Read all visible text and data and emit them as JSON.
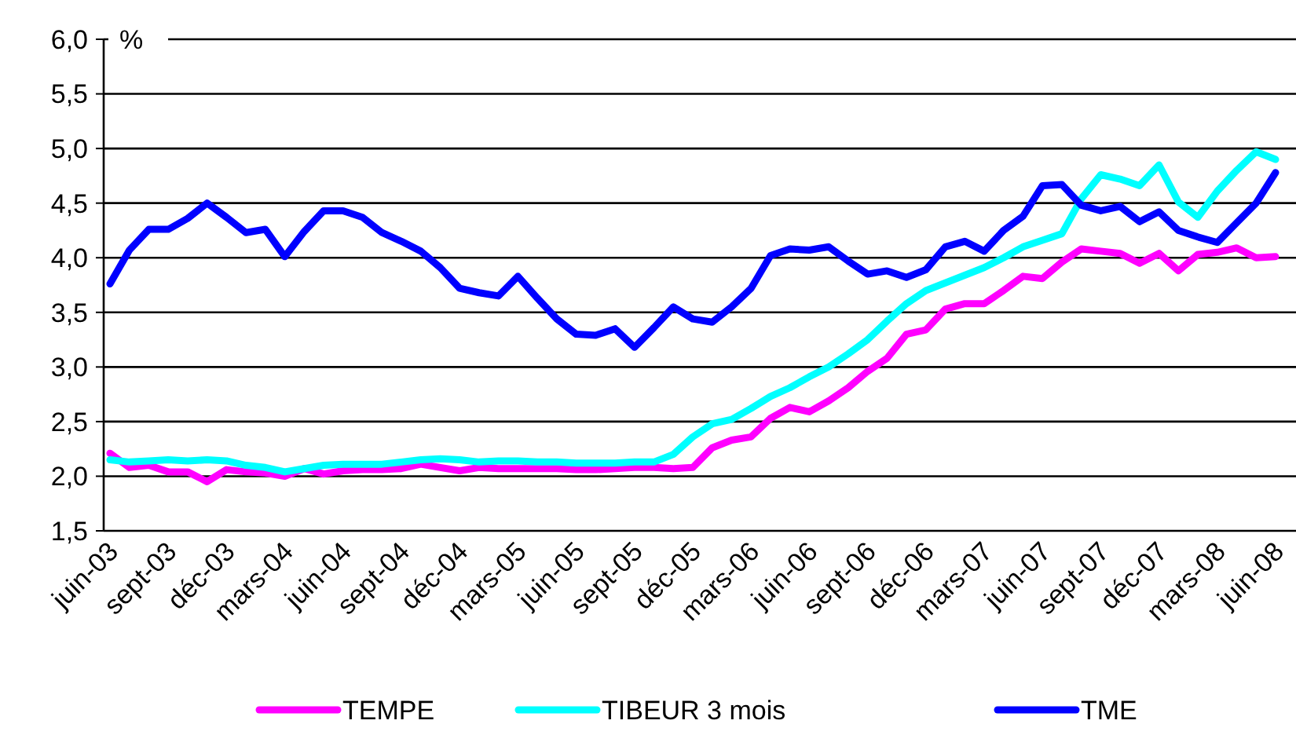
{
  "chart_data": {
    "type": "line",
    "ylabel": "%",
    "categories": [
      "juin-03",
      null,
      null,
      "sept-03",
      null,
      null,
      "déc-03",
      null,
      null,
      "mars-04",
      null,
      null,
      "juin-04",
      null,
      null,
      "sept-04",
      null,
      null,
      "déc-04",
      null,
      null,
      "mars-05",
      null,
      null,
      "juin-05",
      null,
      null,
      "sept-05",
      null,
      null,
      "déc-05",
      null,
      null,
      "mars-06",
      null,
      null,
      "juin-06",
      null,
      null,
      "sept-06",
      null,
      null,
      "déc-06",
      null,
      null,
      "mars-07",
      null,
      null,
      "juin-07",
      null,
      null,
      "sept-07",
      null,
      null,
      "déc-07",
      null,
      null,
      "mars-08",
      null,
      null,
      "juin-08"
    ],
    "ylim": [
      1.5,
      6.0
    ],
    "yticks": [
      {
        "value": 1.5,
        "label": "1,5"
      },
      {
        "value": 2.0,
        "label": "2,0"
      },
      {
        "value": 2.5,
        "label": "2,5"
      },
      {
        "value": 3.0,
        "label": "3,0"
      },
      {
        "value": 3.5,
        "label": "3,5"
      },
      {
        "value": 4.0,
        "label": "4,0"
      },
      {
        "value": 4.5,
        "label": "4,5"
      },
      {
        "value": 5.0,
        "label": "5,0"
      },
      {
        "value": 5.5,
        "label": "5,5"
      },
      {
        "value": 6.0,
        "label": "6,0"
      }
    ],
    "grid": "y",
    "legend": "bottom",
    "line_style": "solid",
    "series": [
      {
        "name": "TEMPE",
        "color": "#ff00ff",
        "values": [
          2.21,
          2.08,
          2.1,
          2.04,
          2.04,
          1.95,
          2.06,
          2.04,
          2.03,
          2.0,
          2.07,
          2.02,
          2.05,
          2.06,
          2.06,
          2.07,
          2.11,
          2.08,
          2.05,
          2.08,
          2.07,
          2.07,
          2.07,
          2.07,
          2.06,
          2.06,
          2.07,
          2.08,
          2.08,
          2.07,
          2.08,
          2.26,
          2.33,
          2.36,
          2.53,
          2.63,
          2.59,
          2.69,
          2.81,
          2.96,
          3.08,
          3.3,
          3.34,
          3.53,
          3.58,
          3.58,
          3.7,
          3.83,
          3.81,
          3.96,
          4.08,
          4.06,
          4.04,
          3.95,
          4.04,
          3.88,
          4.03,
          4.05,
          4.09,
          4.0,
          4.01
        ]
      },
      {
        "name": "TIBEUR 3 mois",
        "color": "#00ffff",
        "values": [
          2.15,
          2.13,
          2.14,
          2.15,
          2.14,
          2.15,
          2.14,
          2.1,
          2.08,
          2.04,
          2.07,
          2.1,
          2.11,
          2.11,
          2.11,
          2.13,
          2.15,
          2.16,
          2.15,
          2.13,
          2.14,
          2.14,
          2.13,
          2.13,
          2.12,
          2.12,
          2.12,
          2.13,
          2.13,
          2.2,
          2.36,
          2.48,
          2.52,
          2.62,
          2.73,
          2.81,
          2.91,
          3.0,
          3.12,
          3.25,
          3.42,
          3.58,
          3.7,
          3.77,
          3.84,
          3.91,
          4.0,
          4.1,
          4.16,
          4.22,
          4.54,
          4.76,
          4.72,
          4.66,
          4.85,
          4.51,
          4.37,
          4.61,
          4.8,
          4.97,
          4.9
        ]
      },
      {
        "name": "TME",
        "color": "#0000ff",
        "values": [
          3.76,
          4.07,
          4.26,
          4.26,
          4.36,
          4.5,
          4.37,
          4.23,
          4.26,
          4.01,
          4.24,
          4.43,
          4.43,
          4.37,
          4.23,
          4.15,
          4.06,
          3.91,
          3.72,
          3.68,
          3.65,
          3.83,
          3.63,
          3.44,
          3.3,
          3.29,
          3.35,
          3.18,
          3.36,
          3.55,
          3.44,
          3.41,
          3.55,
          3.72,
          4.02,
          4.08,
          4.07,
          4.1,
          3.97,
          3.85,
          3.88,
          3.82,
          3.89,
          4.1,
          4.15,
          4.06,
          4.25,
          4.38,
          4.66,
          4.67,
          4.48,
          4.43,
          4.47,
          4.33,
          4.42,
          4.25,
          4.19,
          4.14,
          4.32,
          4.5,
          4.78
        ]
      }
    ]
  }
}
